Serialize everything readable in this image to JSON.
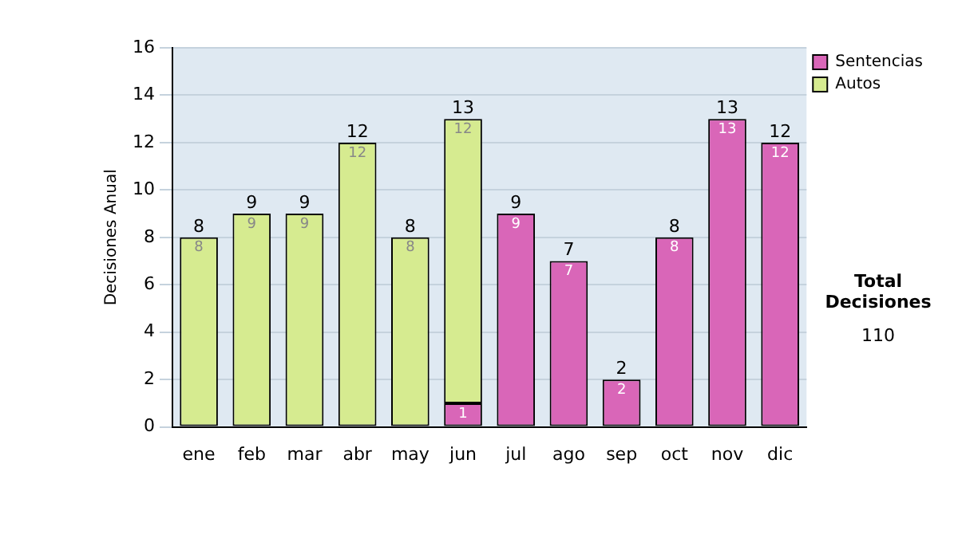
{
  "chart_data": {
    "type": "bar",
    "ylabel": "Decisiones Anual",
    "stacked": true,
    "categories": [
      "ene",
      "feb",
      "mar",
      "abr",
      "may",
      "jun",
      "jul",
      "ago",
      "sep",
      "oct",
      "nov",
      "dic"
    ],
    "series": [
      {
        "name": "Sentencias",
        "color": "#d966b8",
        "values": [
          null,
          null,
          null,
          null,
          null,
          1,
          9,
          7,
          2,
          8,
          13,
          12
        ]
      },
      {
        "name": "Autos",
        "color": "#d6eb90",
        "values": [
          8,
          9,
          9,
          12,
          8,
          12,
          null,
          null,
          null,
          null,
          null,
          null
        ]
      }
    ],
    "ylim": [
      0,
      16
    ],
    "yticks": [
      0,
      2,
      4,
      6,
      8,
      10,
      12,
      14,
      16
    ],
    "grid": "y",
    "legend": "right",
    "data_labels": true,
    "totals": [
      "8",
      "9",
      "9",
      "12",
      "8",
      "13",
      "9",
      "7",
      "2",
      "8",
      "13",
      "12"
    ],
    "annotations": [
      "Total Decisiones",
      "110"
    ]
  }
}
